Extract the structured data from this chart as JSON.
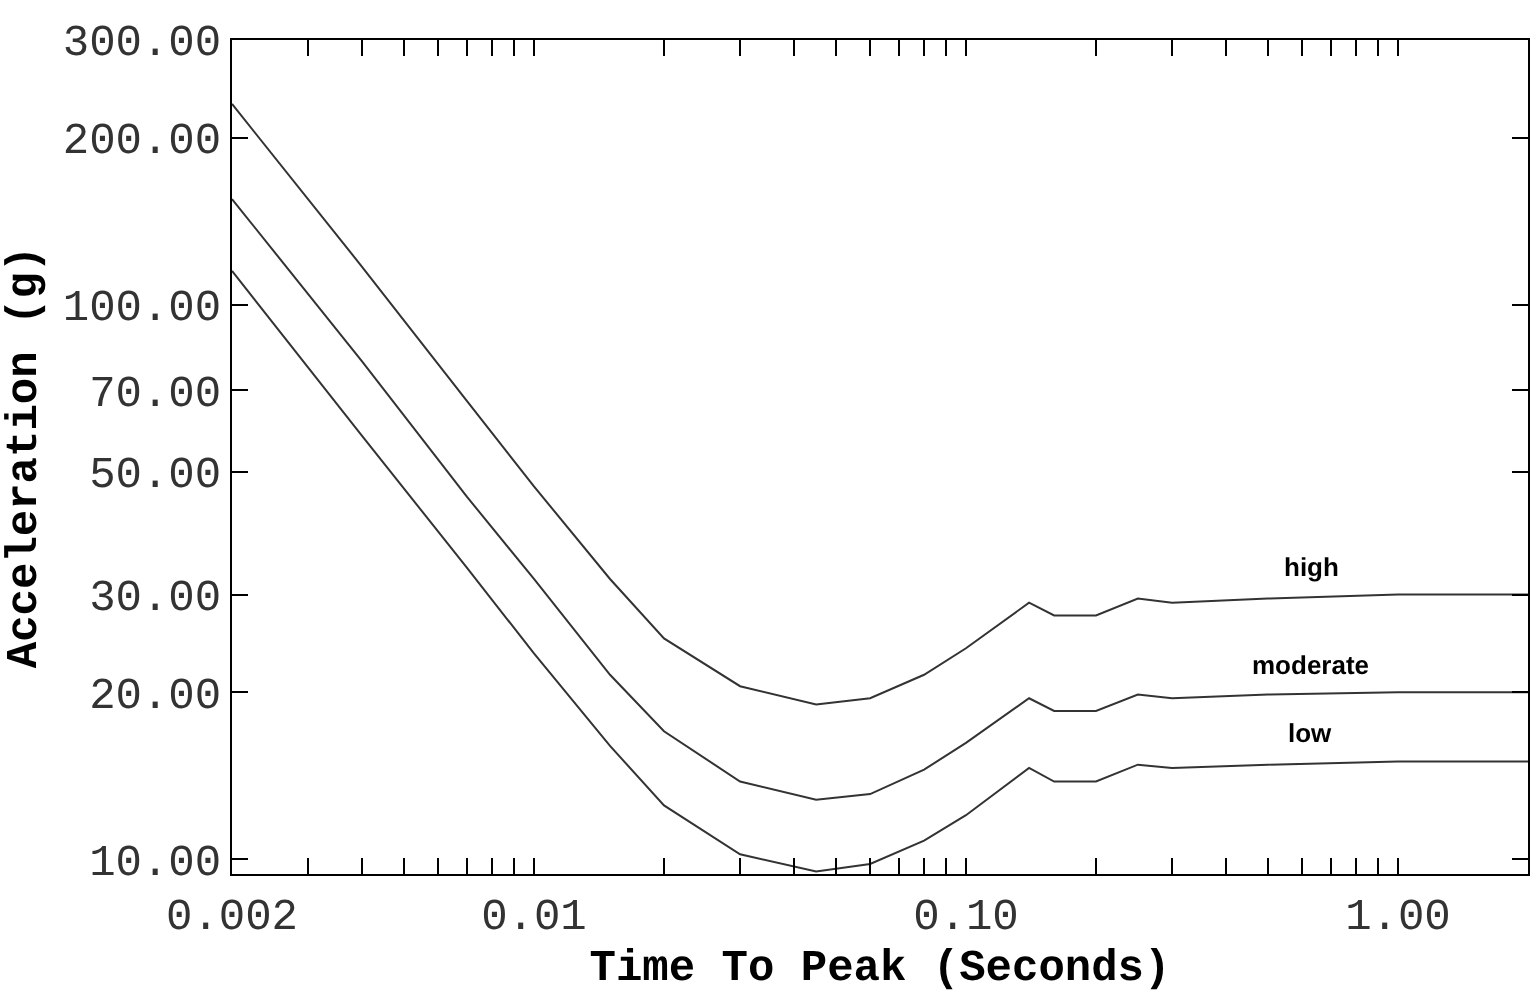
{
  "chart_data": {
    "type": "line",
    "xlabel": "Time To Peak (Seconds)",
    "ylabel": "Acceleration (g)",
    "log": "xy",
    "x": [
      0.002,
      0.004,
      0.007,
      0.01,
      0.015,
      0.02,
      0.03,
      0.045,
      0.06,
      0.08,
      0.1,
      0.14,
      0.16,
      0.2,
      0.25,
      0.3,
      0.5,
      1,
      2
    ],
    "series": [
      {
        "name": "high",
        "color": "#333333",
        "values": [
          230,
          117,
          67,
          47,
          32,
          25,
          20.5,
          19,
          19.5,
          21.5,
          24,
          29,
          27.5,
          27.5,
          29.5,
          29,
          29.5,
          30,
          30
        ]
      },
      {
        "name": "moderate",
        "color": "#333333",
        "values": [
          155,
          79,
          45,
          32,
          21.5,
          17,
          13.8,
          12.8,
          13.1,
          14.5,
          16.2,
          19.5,
          18.5,
          18.5,
          19.8,
          19.5,
          19.8,
          20,
          20
        ]
      },
      {
        "name": "low",
        "color": "#333333",
        "values": [
          115,
          58,
          33.5,
          23.5,
          16,
          12.5,
          10.2,
          9.5,
          9.8,
          10.8,
          12,
          14.6,
          13.8,
          13.8,
          14.8,
          14.6,
          14.8,
          15,
          15
        ]
      }
    ],
    "xlim": [
      0.002,
      2
    ],
    "ylim": [
      9.4,
      300
    ],
    "xticks": [
      {
        "value": 0.002,
        "label": "0.002"
      },
      {
        "value": 0.003,
        "label": null
      },
      {
        "value": 0.004,
        "label": null
      },
      {
        "value": 0.005,
        "label": null
      },
      {
        "value": 0.006,
        "label": null
      },
      {
        "value": 0.007,
        "label": null
      },
      {
        "value": 0.008,
        "label": null
      },
      {
        "value": 0.009,
        "label": null
      },
      {
        "value": 0.01,
        "label": "0.01"
      },
      {
        "value": 0.02,
        "label": null
      },
      {
        "value": 0.03,
        "label": null
      },
      {
        "value": 0.04,
        "label": null
      },
      {
        "value": 0.05,
        "label": null
      },
      {
        "value": 0.06,
        "label": null
      },
      {
        "value": 0.07,
        "label": null
      },
      {
        "value": 0.08,
        "label": null
      },
      {
        "value": 0.09,
        "label": null
      },
      {
        "value": 0.1,
        "label": "0.10"
      },
      {
        "value": 0.2,
        "label": null
      },
      {
        "value": 0.3,
        "label": null
      },
      {
        "value": 0.4,
        "label": null
      },
      {
        "value": 0.5,
        "label": null
      },
      {
        "value": 0.6,
        "label": null
      },
      {
        "value": 0.7,
        "label": null
      },
      {
        "value": 0.8,
        "label": null
      },
      {
        "value": 0.9,
        "label": null
      },
      {
        "value": 1,
        "label": "1.00"
      },
      {
        "value": 2,
        "label": null
      }
    ],
    "yticks": [
      {
        "value": 10,
        "label": "10.00"
      },
      {
        "value": 20,
        "label": "20.00"
      },
      {
        "value": 30,
        "label": "30.00"
      },
      {
        "value": 50,
        "label": "50.00"
      },
      {
        "value": 70,
        "label": "70.00"
      },
      {
        "value": 100,
        "label": "100.00"
      },
      {
        "value": 200,
        "label": "200.00"
      },
      {
        "value": 300,
        "label": "300.00"
      }
    ],
    "legend": false,
    "marker": "none",
    "line_style": "solid"
  }
}
